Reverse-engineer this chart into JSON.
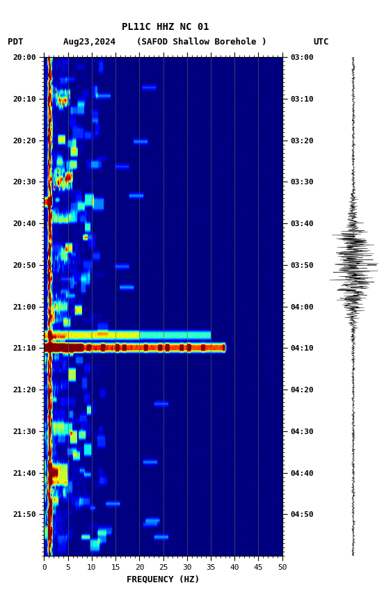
{
  "title_line1": "PL11C HHZ NC 01",
  "title_line2": "Aug23,2024    (SAFOD Shallow Borehole )",
  "left_label": "PDT",
  "right_label": "UTC",
  "freq_min": 0,
  "freq_max": 50,
  "freq_xlabel": "FREQUENCY (HZ)",
  "time_left_labels": [
    "20:00",
    "20:10",
    "20:20",
    "20:30",
    "20:40",
    "20:50",
    "21:00",
    "21:10",
    "21:20",
    "21:30",
    "21:40",
    "21:50"
  ],
  "time_right_labels": [
    "03:00",
    "03:10",
    "03:20",
    "03:30",
    "03:40",
    "03:50",
    "04:00",
    "04:10",
    "04:20",
    "04:30",
    "04:40",
    "04:50"
  ],
  "n_time_steps": 120,
  "n_freq_bins": 500,
  "background_color": "#ffffff",
  "spectrogram_bg": "#000080",
  "vertical_lines_freq": [
    5,
    10,
    15,
    20,
    25,
    30,
    35,
    40,
    45
  ],
  "colormap": "jet",
  "vmin": 0,
  "vmax": 10
}
